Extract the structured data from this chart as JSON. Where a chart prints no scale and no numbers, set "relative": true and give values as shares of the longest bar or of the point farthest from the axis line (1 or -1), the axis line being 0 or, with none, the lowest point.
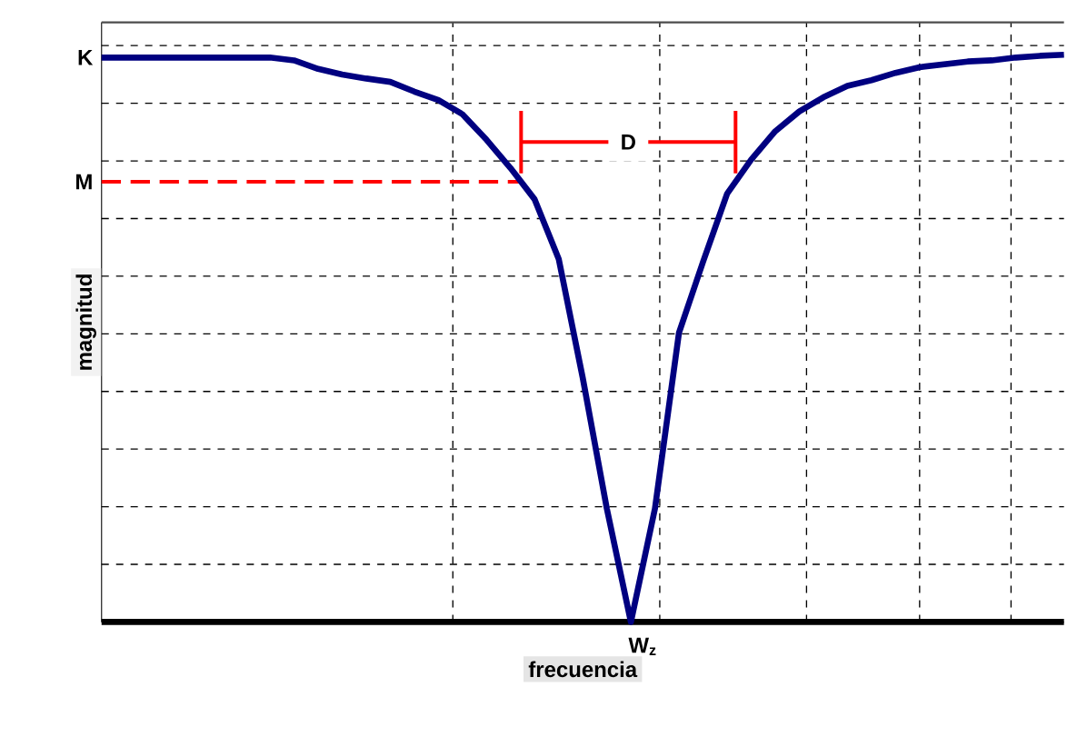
{
  "chart_data": {
    "type": "line",
    "relative": true,
    "xlabel": "frecuencia",
    "ylabel": "magnitud",
    "categories": [
      null,
      null,
      null,
      null,
      null,
      null,
      null,
      null,
      null,
      null,
      null,
      null,
      null,
      null,
      null,
      null,
      null,
      null,
      null,
      null,
      null,
      null,
      null,
      null,
      null,
      null,
      null,
      null,
      null,
      null,
      null,
      null,
      null,
      null,
      null,
      null,
      null,
      null,
      null,
      null,
      null
    ],
    "series": [
      {
        "color": "#000080",
        "values": [
          0.995,
          0.995,
          0.995,
          0.995,
          0.995,
          0.995,
          0.995,
          0.995,
          0.99,
          0.975,
          0.965,
          0.958,
          0.952,
          0.935,
          0.92,
          0.895,
          0.85,
          0.8,
          0.745,
          0.64,
          0.43,
          0.2,
          0,
          0.2,
          0.51,
          0.635,
          0.755,
          0.815,
          0.865,
          0.9,
          0.925,
          0.945,
          0.955,
          0.968,
          0.978,
          0.983,
          0.988,
          0.99,
          0.995,
          0.998,
          1.0
        ]
      }
    ],
    "grid": true,
    "marker": "none",
    "line_style": "solid",
    "annotations": [
      "K",
      "W$_{z}$",
      "D"
    ],
    "ref_lines": [
      {
        "axis": "y",
        "value": 0.776,
        "label": "M",
        "color": "#ff0000",
        "line_style": "dashed"
      }
    ]
  }
}
